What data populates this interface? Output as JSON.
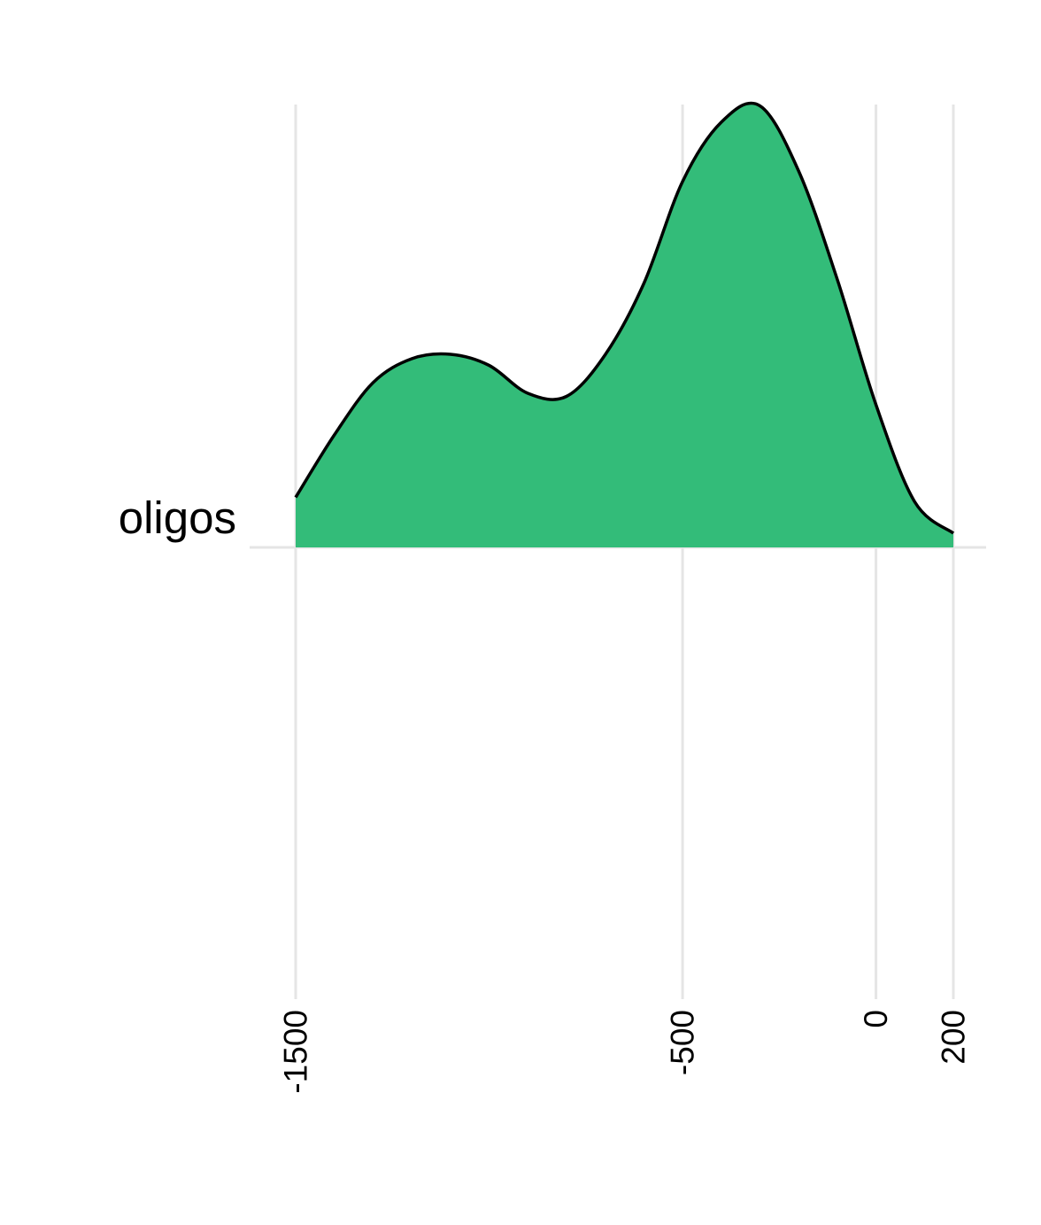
{
  "chart_data": {
    "type": "area",
    "title": "",
    "xlabel": "",
    "ylabel": "",
    "xlim": [
      -1500,
      200
    ],
    "x_ticks": [
      -1500,
      -500,
      0,
      200
    ],
    "x_tick_labels": [
      "-1500",
      "-500",
      "0",
      "200"
    ],
    "categories": [
      "oligos"
    ],
    "grid": true,
    "legend": "none",
    "series": [
      {
        "category": "oligos",
        "fill_color": "#33bc79",
        "line_color": "#000000",
        "x": [
          -1500,
          -1400,
          -1300,
          -1200,
          -1100,
          -1000,
          -900,
          -800,
          -700,
          -600,
          -500,
          -400,
          -300,
          -200,
          -100,
          0,
          100,
          200
        ],
        "density": [
          0.113,
          0.254,
          0.372,
          0.426,
          0.436,
          0.411,
          0.348,
          0.341,
          0.435,
          0.596,
          0.826,
          0.96,
          0.997,
          0.85,
          0.605,
          0.322,
          0.103,
          0.032
        ]
      }
    ]
  }
}
